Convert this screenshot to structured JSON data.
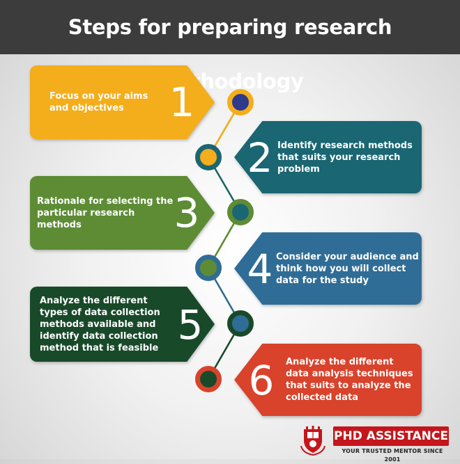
{
  "header": {
    "title": "Steps for preparing research methodology"
  },
  "steps": [
    {
      "number": "1",
      "text": "Focus on your aims and objectives",
      "color": "#f4ad1b",
      "node_fill": "#2e3a8c"
    },
    {
      "number": "2",
      "text": "Identify research methods that suits your research problem",
      "color": "#1a6672",
      "node_fill": "#f4ad1b"
    },
    {
      "number": "3",
      "text": "Rationale for selecting the particular research methods",
      "color": "#5d8c35",
      "node_fill": "#1a6672"
    },
    {
      "number": "4",
      "text": "Consider your audience and think how you will collect data for the study",
      "color": "#2f6d96",
      "node_fill": "#5d8c35"
    },
    {
      "number": "5",
      "text": "Analyze the different types of data collection methods available and identify data collection method that is feasible",
      "color": "#184a2a",
      "node_fill": "#2f6d96"
    },
    {
      "number": "6",
      "text": "Analyze the different data analysis techniques that suits to analyze the collected data",
      "color": "#d9422b",
      "node_fill": "#d9422b"
    }
  ],
  "logo": {
    "name": "PHD ASSISTANCE",
    "tagline": "YOUR TRUSTED MENTOR SINCE 2001",
    "brand_color": "#c4161c"
  }
}
